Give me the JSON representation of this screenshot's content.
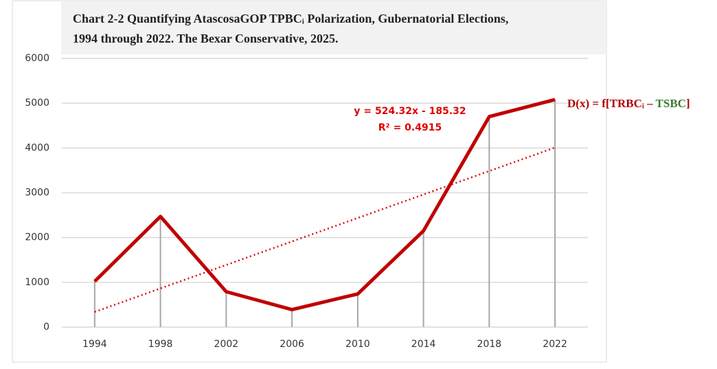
{
  "chart_data": {
    "type": "line",
    "title": [
      "Chart 2-2 Quantifying AtascosaGOP TPBCᵢ Polarization, Gubernatorial Elections,",
      "1994 through 2022. The Bexar Conservative, 2025."
    ],
    "categories": [
      "1994",
      "1998",
      "2002",
      "2006",
      "2010",
      "2014",
      "2018",
      "2022"
    ],
    "series": [
      {
        "color": "#c00000",
        "values": [
          1020,
          2470,
          790,
          390,
          740,
          2150,
          4700,
          5080
        ]
      }
    ],
    "ylim": [
      0,
      6000
    ],
    "yticks": [
      0,
      1000,
      2000,
      3000,
      4000,
      5000,
      6000
    ],
    "grid": true,
    "drop_lines": true,
    "trendline": {
      "slope": 524.32,
      "intercept": -185.32,
      "color": "#e00000",
      "equation": "y = 524.32x - 185.32",
      "r_squared": "R² = 0.4915"
    },
    "formula_label": [
      {
        "text": "D(x) = f[TRBCᵢ – ",
        "color": "#b00000"
      },
      {
        "text": "TSBC",
        "color": "#3a7a2a"
      },
      {
        "text": "]",
        "color": "#b00000"
      }
    ]
  }
}
